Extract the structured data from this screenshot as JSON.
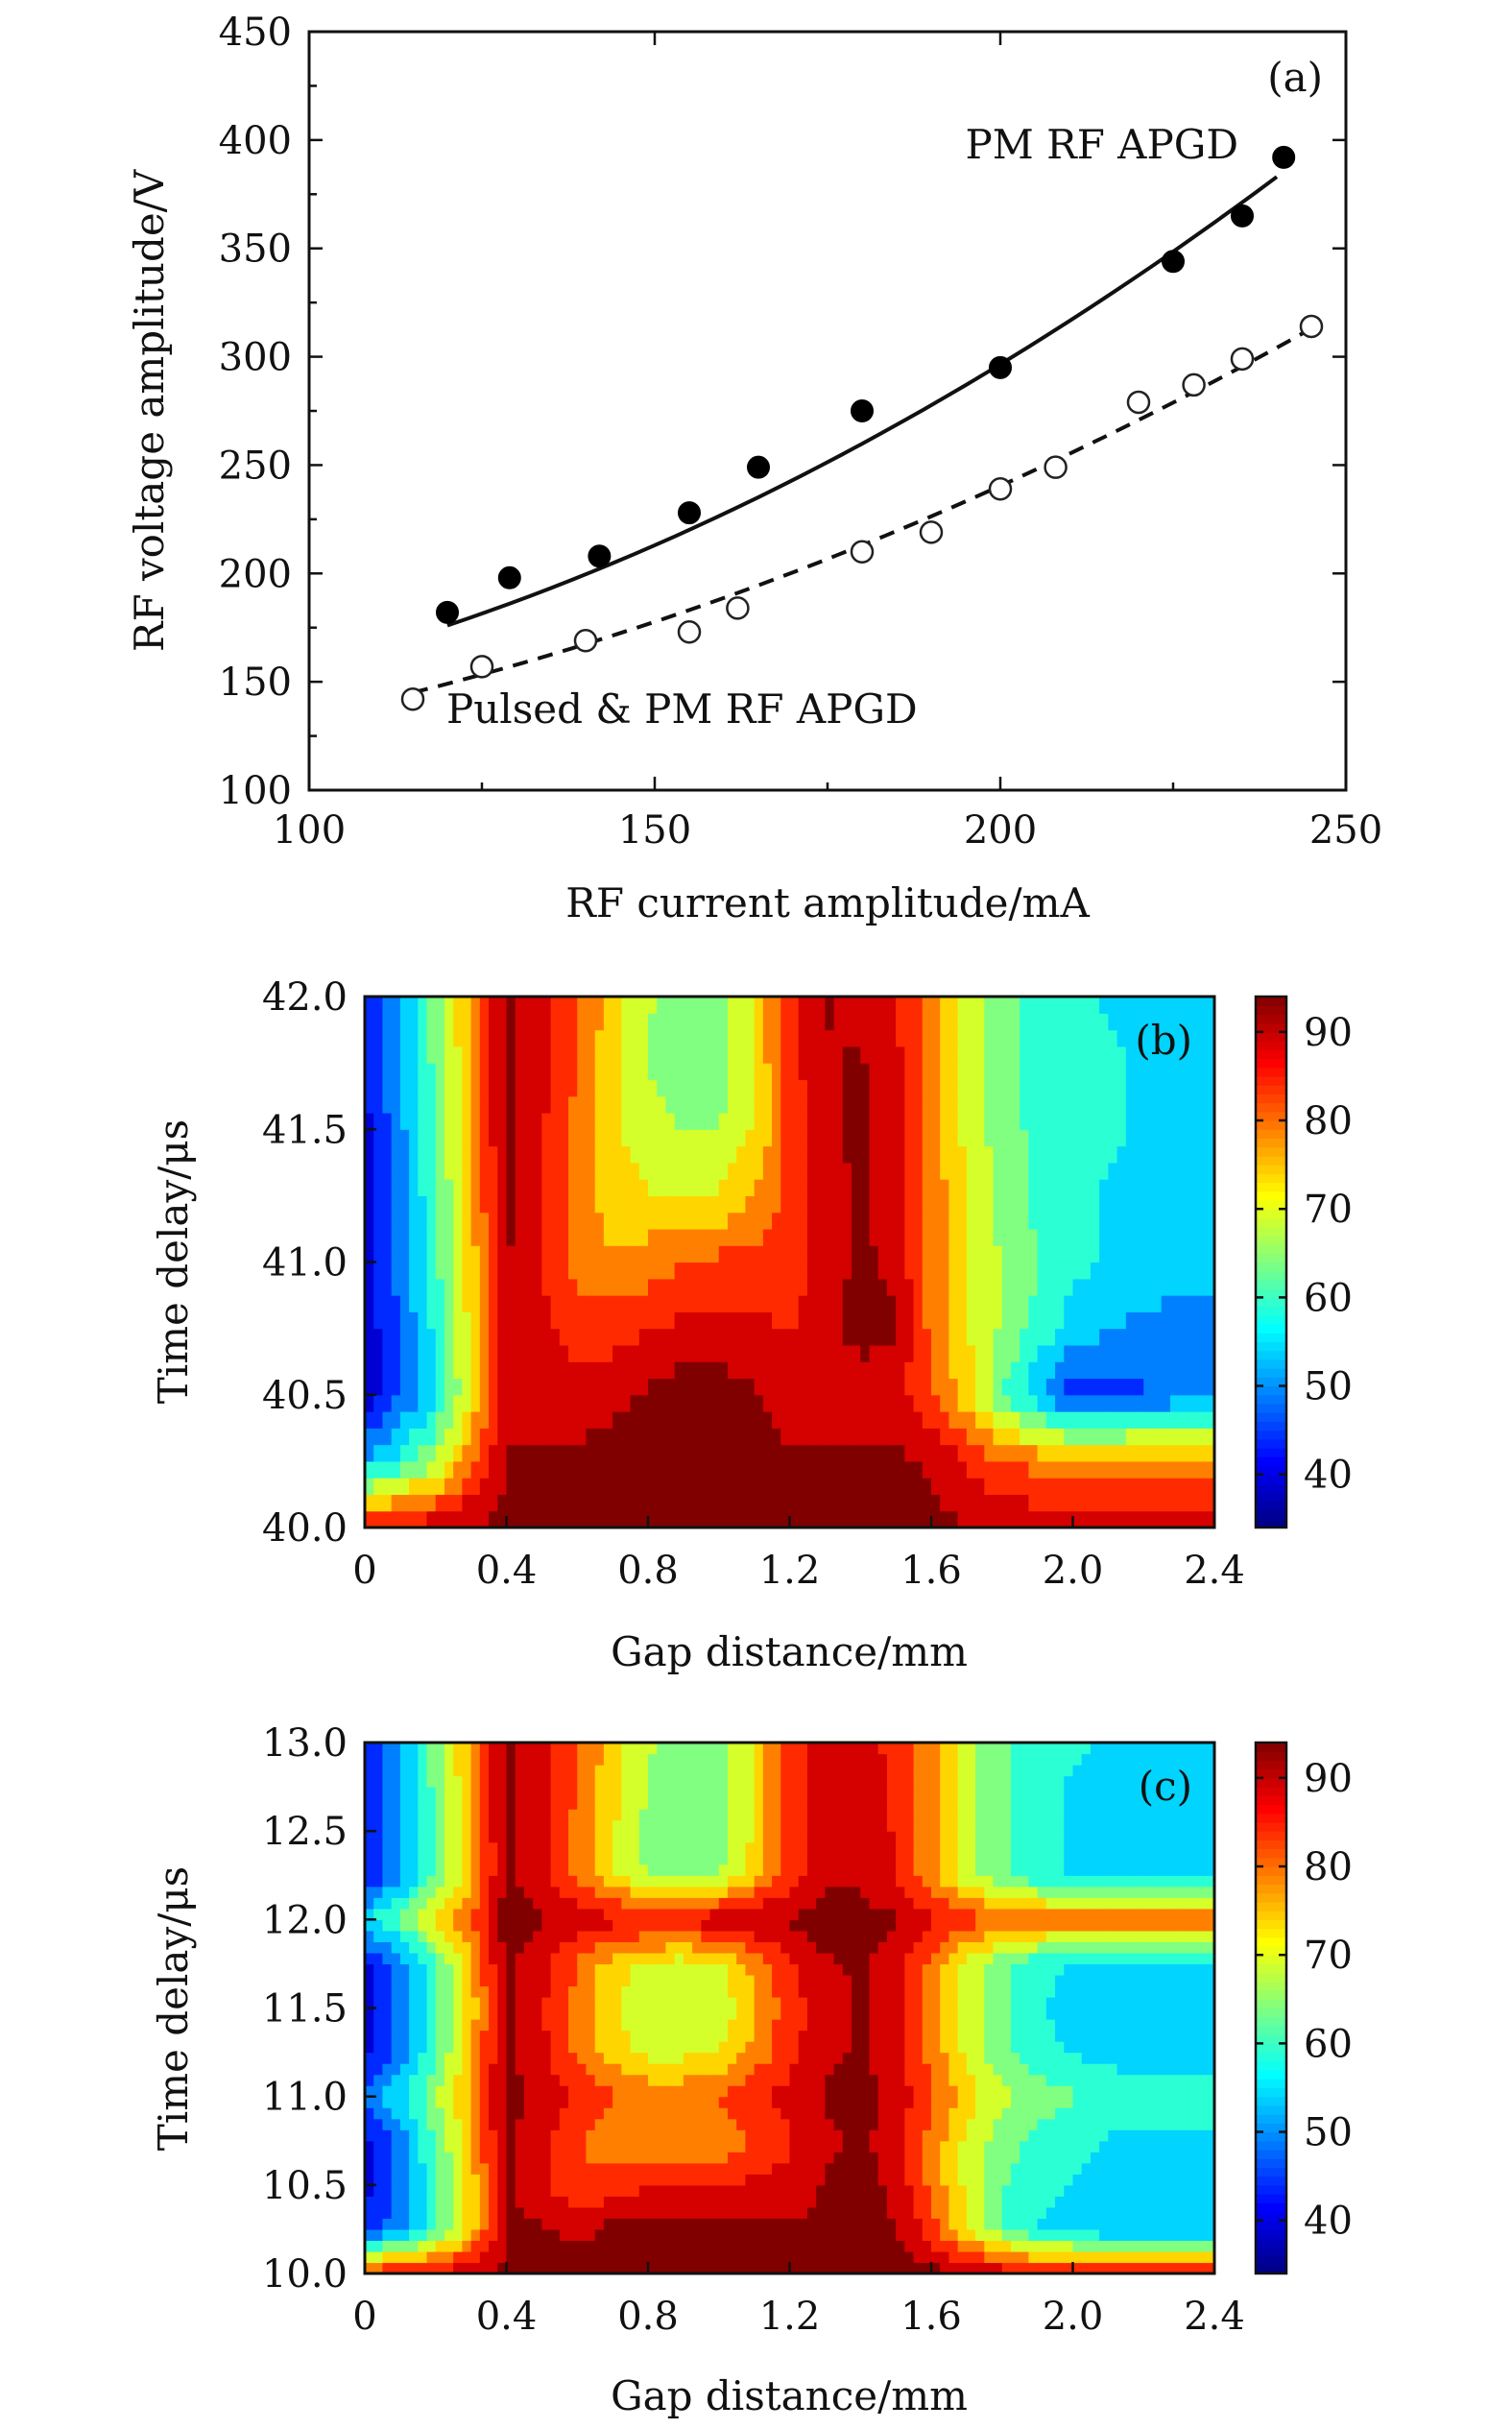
{
  "chart_data": [
    {
      "type": "scatter",
      "panel_label": "(a)",
      "xlabel": "RF current amplitude/mA",
      "ylabel": "RF voltage amplitude/V",
      "xlim": [
        100,
        250
      ],
      "ylim": [
        100,
        450
      ],
      "xticks": [
        100,
        150,
        200,
        250
      ],
      "yticks": [
        100,
        150,
        200,
        250,
        300,
        350,
        400,
        450
      ],
      "series": [
        {
          "name": "PM RF APGD",
          "marker": "filled-circle",
          "fit_line": "solid",
          "x": [
            120,
            129,
            142,
            155,
            165,
            180,
            200,
            225,
            235,
            241
          ],
          "y": [
            182,
            198,
            208,
            228,
            249,
            275,
            295,
            344,
            365,
            392
          ],
          "fit": {
            "x": [
              120,
              240
            ],
            "y": [
              176,
              383
            ]
          }
        },
        {
          "name": "Pulsed & PM RF APGD",
          "marker": "open-circle",
          "fit_line": "dashed",
          "x": [
            115,
            125,
            140,
            155,
            162,
            180,
            190,
            200,
            208,
            220,
            228,
            235,
            245
          ],
          "y": [
            142,
            157,
            169,
            173,
            184,
            210,
            219,
            239,
            249,
            279,
            287,
            299,
            314
          ],
          "fit": {
            "x": [
              115,
              245
            ],
            "y": [
              145,
              313
            ]
          }
        }
      ]
    },
    {
      "type": "heatmap",
      "panel_label": "(b)",
      "xlabel": "Gap distance/mm",
      "ylabel": "Time delay/μs",
      "xlim": [
        0,
        2.4
      ],
      "ylim": [
        40.0,
        42.0
      ],
      "xticks": [
        "0",
        "0.4",
        "0.8",
        "1.2",
        "1.6",
        "2.0",
        "2.4"
      ],
      "yticks": [
        "40.0",
        "40.5",
        "41.0",
        "41.5",
        "42.0"
      ],
      "colorbar": {
        "min": 34,
        "max": 94,
        "ticks": [
          "40",
          "50",
          "60",
          "70",
          "80",
          "90"
        ]
      },
      "x": [
        0,
        0.1,
        0.2,
        0.3,
        0.4,
        0.5,
        0.6,
        0.7,
        0.8,
        0.9,
        1.0,
        1.1,
        1.2,
        1.3,
        1.4,
        1.5,
        1.6,
        1.7,
        1.8,
        1.9,
        2.0,
        2.1,
        2.2,
        2.3,
        2.4
      ],
      "y": [
        40.0,
        40.25,
        40.5,
        40.75,
        41.0,
        41.25,
        41.5,
        41.75,
        42.0
      ],
      "z": [
        [
          88,
          89,
          90,
          92,
          93,
          93,
          94,
          94,
          94,
          94,
          94,
          94,
          94,
          94,
          94,
          94,
          93,
          92,
          91,
          90,
          89,
          88,
          88,
          88,
          88
        ],
        [
          52,
          58,
          66,
          80,
          92,
          92,
          93,
          94,
          94,
          94,
          94,
          94,
          93,
          93,
          93,
          93,
          91,
          86,
          82,
          80,
          79,
          79,
          80,
          80,
          80
        ],
        [
          38,
          46,
          56,
          72,
          90,
          90,
          88,
          90,
          92,
          94,
          94,
          92,
          88,
          88,
          88,
          88,
          82,
          74,
          62,
          52,
          44,
          44,
          46,
          48,
          50
        ],
        [
          38,
          47,
          58,
          73,
          92,
          88,
          84,
          84,
          86,
          88,
          88,
          88,
          86,
          90,
          94,
          92,
          80,
          72,
          66,
          60,
          54,
          52,
          50,
          48,
          48
        ],
        [
          39,
          48,
          60,
          74,
          92,
          86,
          80,
          77,
          79,
          81,
          83,
          84,
          84,
          88,
          93,
          90,
          80,
          72,
          66,
          62,
          58,
          56,
          56,
          54,
          54
        ],
        [
          40,
          49,
          61,
          75,
          93,
          86,
          80,
          74,
          72,
          72,
          72,
          76,
          84,
          90,
          92,
          88,
          80,
          71,
          65,
          60,
          58,
          56,
          55,
          54,
          54
        ],
        [
          40,
          50,
          62,
          76,
          93,
          87,
          80,
          73,
          68,
          66,
          66,
          72,
          83,
          90,
          93,
          88,
          80,
          70,
          64,
          60,
          58,
          57,
          56,
          55,
          55
        ],
        [
          41,
          51,
          63,
          76,
          93,
          88,
          81,
          73,
          66,
          64,
          65,
          72,
          84,
          91,
          92,
          88,
          80,
          70,
          63,
          60,
          58,
          57,
          56,
          56,
          56
        ],
        [
          42,
          52,
          64,
          77,
          93,
          89,
          82,
          74,
          67,
          64,
          64,
          72,
          84,
          92,
          90,
          86,
          80,
          70,
          64,
          60,
          58,
          56,
          56,
          56,
          56
        ]
      ]
    },
    {
      "type": "heatmap",
      "panel_label": "(c)",
      "xlabel": "Gap distance/mm",
      "ylabel": "Time delay/μs",
      "xlim": [
        0,
        2.4
      ],
      "ylim": [
        10.0,
        13.0
      ],
      "xticks": [
        "0",
        "0.4",
        "0.8",
        "1.2",
        "1.6",
        "2.0",
        "2.4"
      ],
      "yticks": [
        "10.0",
        "10.5",
        "11.0",
        "11.5",
        "12.0",
        "12.5",
        "13.0"
      ],
      "colorbar": {
        "min": 34,
        "max": 94,
        "ticks": [
          "40",
          "50",
          "60",
          "70",
          "80",
          "90"
        ]
      },
      "x": [
        0,
        0.1,
        0.2,
        0.3,
        0.4,
        0.5,
        0.6,
        0.7,
        0.8,
        0.9,
        1.0,
        1.1,
        1.2,
        1.3,
        1.4,
        1.5,
        1.6,
        1.7,
        1.8,
        1.9,
        2.0,
        2.1,
        2.2,
        2.3,
        2.4
      ],
      "y": [
        10.0,
        10.25,
        10.5,
        10.75,
        11.0,
        11.25,
        11.5,
        11.75,
        12.0,
        12.25,
        12.5,
        12.75,
        13.0
      ],
      "z": [
        [
          86,
          87,
          88,
          90,
          92,
          93,
          94,
          94,
          94,
          94,
          94,
          94,
          94,
          94,
          94,
          94,
          93,
          92,
          90,
          88,
          87,
          86,
          86,
          86,
          86
        ],
        [
          42,
          50,
          60,
          74,
          92,
          92,
          90,
          93,
          94,
          94,
          94,
          93,
          92,
          93,
          92,
          92,
          84,
          72,
          62,
          56,
          54,
          52,
          52,
          52,
          52
        ],
        [
          40,
          49,
          60,
          74,
          93,
          88,
          82,
          84,
          86,
          86,
          86,
          88,
          88,
          92,
          94,
          90,
          80,
          70,
          62,
          58,
          56,
          54,
          54,
          54,
          54
        ],
        [
          40,
          49,
          62,
          75,
          93,
          88,
          82,
          78,
          76,
          76,
          78,
          82,
          86,
          90,
          93,
          88,
          80,
          70,
          64,
          60,
          58,
          56,
          56,
          56,
          56
        ],
        [
          48,
          55,
          66,
          78,
          93,
          90,
          86,
          82,
          80,
          80,
          82,
          86,
          88,
          92,
          94,
          90,
          82,
          74,
          68,
          64,
          62,
          60,
          58,
          58,
          58
        ],
        [
          40,
          49,
          61,
          75,
          93,
          88,
          80,
          74,
          70,
          70,
          72,
          78,
          85,
          90,
          92,
          88,
          80,
          70,
          63,
          58,
          56,
          55,
          54,
          54,
          54
        ],
        [
          39,
          48,
          60,
          74,
          93,
          87,
          80,
          72,
          68,
          66,
          68,
          76,
          84,
          90,
          92,
          88,
          80,
          70,
          62,
          57,
          55,
          54,
          54,
          54,
          54
        ],
        [
          40,
          49,
          61,
          75,
          93,
          88,
          81,
          74,
          70,
          69,
          70,
          78,
          86,
          91,
          92,
          88,
          80,
          70,
          63,
          58,
          56,
          55,
          55,
          55,
          55
        ],
        [
          56,
          62,
          72,
          82,
          94,
          92,
          90,
          88,
          88,
          88,
          90,
          92,
          92,
          94,
          94,
          92,
          88,
          84,
          82,
          80,
          80,
          80,
          80,
          80,
          80
        ],
        [
          41,
          50,
          62,
          75,
          93,
          88,
          80,
          72,
          66,
          64,
          66,
          74,
          84,
          90,
          90,
          86,
          78,
          68,
          62,
          58,
          56,
          56,
          56,
          56,
          56
        ],
        [
          41,
          50,
          62,
          76,
          93,
          88,
          80,
          72,
          65,
          62,
          64,
          72,
          84,
          90,
          90,
          86,
          78,
          68,
          62,
          58,
          56,
          56,
          56,
          55,
          55
        ],
        [
          42,
          51,
          63,
          76,
          93,
          88,
          81,
          73,
          66,
          63,
          64,
          72,
          84,
          90,
          89,
          86,
          78,
          68,
          62,
          58,
          56,
          56,
          56,
          56,
          56
        ],
        [
          42,
          52,
          64,
          77,
          93,
          89,
          82,
          74,
          67,
          64,
          65,
          72,
          84,
          90,
          88,
          85,
          78,
          68,
          63,
          59,
          57,
          56,
          56,
          56,
          56
        ]
      ]
    }
  ]
}
